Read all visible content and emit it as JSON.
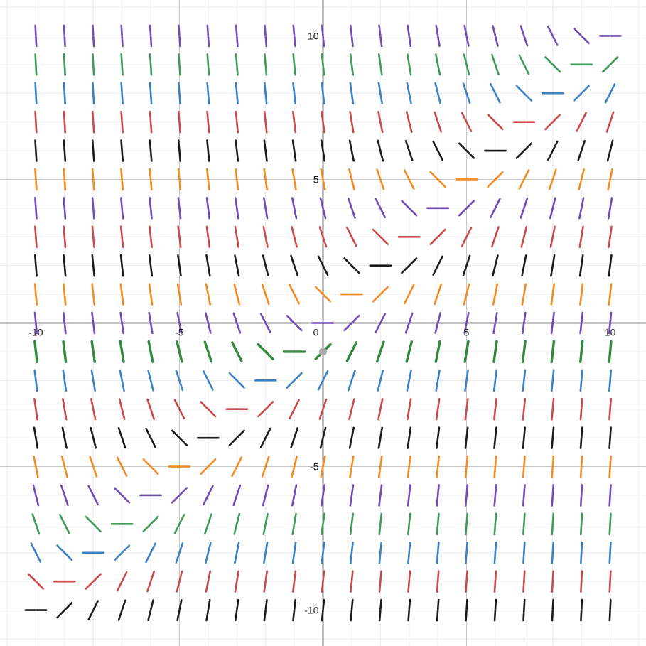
{
  "chart_data": {
    "type": "scatter",
    "plot_style": "slope field",
    "xlim": [
      -11,
      11
    ],
    "ylim": [
      -11,
      11
    ],
    "grid": true,
    "x_ticks": [
      -10,
      -5,
      0,
      5,
      10
    ],
    "y_ticks": [
      -10,
      -5,
      5,
      10
    ],
    "x_tick_labels": [
      "-10",
      "-5",
      "0",
      "5",
      "10"
    ],
    "y_tick_labels": [
      "-10",
      "-5",
      "5",
      "10"
    ],
    "sample_x": [
      -10,
      -9,
      -8,
      -7,
      -6,
      -5,
      -4,
      -3,
      -2,
      -1,
      0,
      1,
      2,
      3,
      4,
      5,
      6,
      7,
      8,
      9,
      10
    ],
    "sample_y": [
      10,
      9,
      8,
      7,
      6,
      5,
      4,
      3,
      2,
      1,
      0,
      -1,
      -2,
      -3,
      -4,
      -5,
      -6,
      -7,
      -8,
      -9,
      -10
    ],
    "row_colors": [
      "#6f4cb6",
      "#3f9a5a",
      "#3b82c4",
      "#c94a4a",
      "#1b1b1b",
      "#f28b22",
      "#6f4cb6",
      "#c94a4a",
      "#1b1b1b",
      "#f28b22",
      "#6f4cb6",
      "#2f8a3e",
      "#3b82c4",
      "#c94a4a",
      "#1b1b1b",
      "#f28b22",
      "#6f4cb6",
      "#3f9a5a",
      "#3b82c4",
      "#c94a4a",
      "#1b1b1b"
    ],
    "highlight_row": -1,
    "point": {
      "x": 0,
      "y": -1,
      "color": "#aaaaaa"
    }
  },
  "colors": {
    "major_grid": "#c6c6c6",
    "minor_grid": "#ececec",
    "axis": "#111111"
  }
}
